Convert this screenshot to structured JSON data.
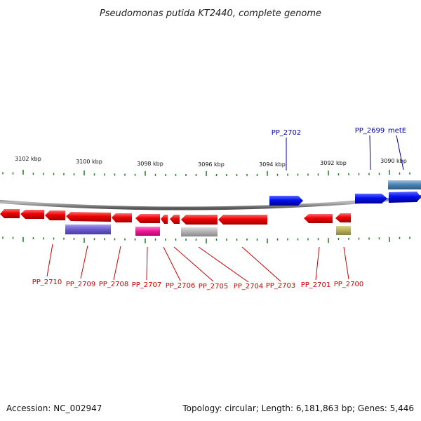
{
  "title": "Pseudomonas putida KT2440, complete genome",
  "footer": {
    "accession": "Accession: NC_002947",
    "summary": "Topology: circular; Length: 6,181,863 bp; Genes: 5,446"
  },
  "colors": {
    "reverse_gene": "#ee0000",
    "forward_gene": "#0000ee",
    "label_reverse": "#cc0000",
    "label_forward": "#0000aa",
    "tick": "#1f7a1f",
    "backbone": "#7f7f7f"
  },
  "kbp_scale": [
    {
      "label": "3102 kbp",
      "kbp": 3102
    },
    {
      "label": "3100 kbp",
      "kbp": 3100
    },
    {
      "label": "3098 kbp",
      "kbp": 3098
    },
    {
      "label": "3096 kbp",
      "kbp": 3096
    },
    {
      "label": "3094 kbp",
      "kbp": 3094
    },
    {
      "label": "3092 kbp",
      "kbp": 3092
    },
    {
      "label": "3090 kbp",
      "kbp": 3090
    }
  ],
  "forward_labels": [
    {
      "id": "PP_2702",
      "text": "PP_2702"
    },
    {
      "id": "PP_2699",
      "text": "PP_2699"
    },
    {
      "id": "metE",
      "text": "metE"
    }
  ],
  "reverse_labels": [
    {
      "id": "PP_2710",
      "text": "PP_2710"
    },
    {
      "id": "PP_2709",
      "text": "PP_2709"
    },
    {
      "id": "PP_2708",
      "text": "PP_2708"
    },
    {
      "id": "PP_2707",
      "text": "PP_2707"
    },
    {
      "id": "PP_2706",
      "text": "PP_2706"
    },
    {
      "id": "PP_2705",
      "text": "PP_2705"
    },
    {
      "id": "PP_2704",
      "text": "PP_2704"
    },
    {
      "id": "PP_2703",
      "text": "PP_2703"
    },
    {
      "id": "PP_2701",
      "text": "PP_2701"
    },
    {
      "id": "PP_2700",
      "text": "PP_2700"
    }
  ]
}
